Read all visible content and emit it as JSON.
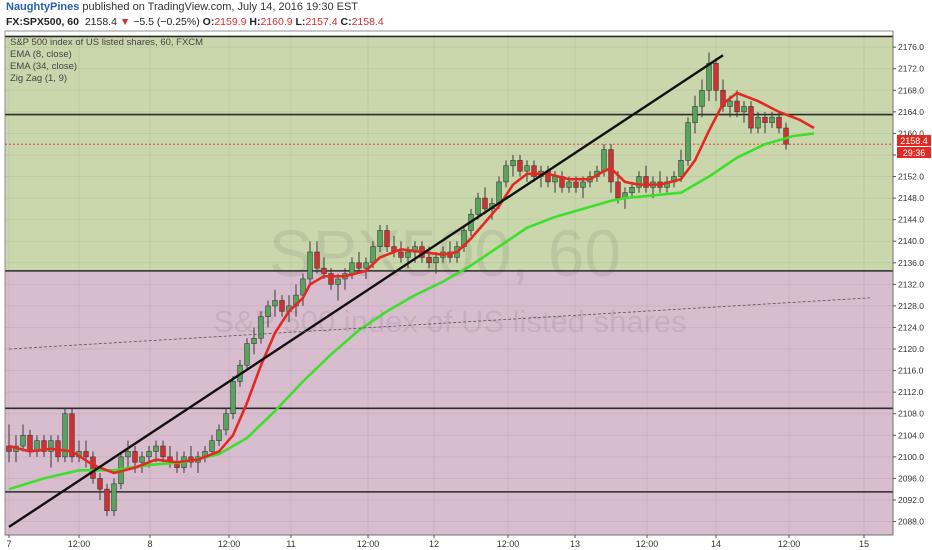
{
  "header": {
    "author": "NaughtyPines",
    "published": "published on TradingView.com, July 14, 2016 19:30 EST"
  },
  "symbol_bar": {
    "symbol": "FX:SPX500, 60",
    "last": "2158.4",
    "arrow": "▼",
    "change": "−5.5 (−0.25%)",
    "o_label": "O:",
    "o": "2159.9",
    "h_label": "H:",
    "h": "2160.9",
    "l_label": "L:",
    "l": "2157.4",
    "c_label": "C:",
    "c": "2158.4"
  },
  "legend": {
    "title": "S&P 500 index of US listed shares, 60, FXCM",
    "ema_fast": "EMA (8, close)",
    "ema_slow": "EMA (34, close)",
    "zigzag": "Zig Zag (1, 9)"
  },
  "watermark": {
    "symbol": "SPX500, 60",
    "description": "S&P 500 index of US listed shares"
  },
  "price_labels": {
    "last": "2158.4",
    "countdown": "29:36"
  },
  "colors": {
    "up_candle": "#55a65a",
    "down_candle": "#d32f2f",
    "ema_fast": "#e32a22",
    "ema_slow": "#3ce02c",
    "upper_zone": "rgba(128,160,60,0.42)",
    "lower_zone": "rgba(152,82,128,0.38)"
  },
  "chart_data": {
    "type": "candlestick",
    "ylim": [
      2085.5,
      2179
    ],
    "y_ticks": [
      2088.0,
      2092.0,
      2096.0,
      2100.0,
      2104.0,
      2108.0,
      2112.0,
      2116.0,
      2120.0,
      2124.0,
      2128.0,
      2132.0,
      2136.0,
      2140.0,
      2144.0,
      2148.0,
      2152.0,
      2156.0,
      2160.0,
      2164.0,
      2168.0,
      2172.0,
      2176.0
    ],
    "x_ticks": [
      "7",
      "12:00",
      "8",
      "12:00",
      "11",
      "12:00",
      "12",
      "12:00",
      "13",
      "12:00",
      "14",
      "12:00",
      "15"
    ],
    "horizontal_levels": [
      2178.0,
      2163.5,
      2134.5,
      2109.0,
      2093.5
    ],
    "candles": [
      [
        2102,
        2106,
        2099,
        2101
      ],
      [
        2101,
        2104,
        2099,
        2102
      ],
      [
        2102,
        2106,
        2101,
        2104
      ],
      [
        2104,
        2105,
        2100,
        2101
      ],
      [
        2101,
        2104,
        2100,
        2103
      ],
      [
        2103,
        2104,
        2100,
        2101
      ],
      [
        2101,
        2104,
        2098,
        2103
      ],
      [
        2103,
        2104,
        2099,
        2100
      ],
      [
        2100,
        2109,
        2099,
        2108
      ],
      [
        2108,
        2109,
        2099,
        2100
      ],
      [
        2100,
        2103,
        2099,
        2101
      ],
      [
        2101,
        2103,
        2098,
        2100
      ],
      [
        2100,
        2101,
        2095,
        2096
      ],
      [
        2096,
        2097,
        2092,
        2094
      ],
      [
        2094,
        2095,
        2089,
        2090
      ],
      [
        2090,
        2096,
        2089,
        2095
      ],
      [
        2095,
        2101,
        2094,
        2100
      ],
      [
        2100,
        2103,
        2098,
        2101
      ],
      [
        2101,
        2102,
        2097,
        2099
      ],
      [
        2099,
        2101,
        2097,
        2100
      ],
      [
        2100,
        2102,
        2098,
        2101
      ],
      [
        2101,
        2103,
        2099,
        2102
      ],
      [
        2102,
        2103,
        2099,
        2100
      ],
      [
        2100,
        2102,
        2098,
        2099
      ],
      [
        2099,
        2101,
        2097,
        2098
      ],
      [
        2098,
        2101,
        2097,
        2100
      ],
      [
        2100,
        2102,
        2098,
        2099
      ],
      [
        2099,
        2101,
        2097,
        2100
      ],
      [
        2100,
        2102,
        2099,
        2101
      ],
      [
        2101,
        2104,
        2100,
        2103
      ],
      [
        2103,
        2106,
        2102,
        2105
      ],
      [
        2105,
        2109,
        2104,
        2108
      ],
      [
        2108,
        2115,
        2107,
        2114
      ],
      [
        2114,
        2118,
        2113,
        2117
      ],
      [
        2117,
        2122,
        2116,
        2121
      ],
      [
        2121,
        2124,
        2119,
        2122
      ],
      [
        2122,
        2127,
        2121,
        2126
      ],
      [
        2126,
        2129,
        2124,
        2128
      ],
      [
        2128,
        2131,
        2126,
        2129
      ],
      [
        2129,
        2130,
        2126,
        2127
      ],
      [
        2127,
        2130,
        2125,
        2128
      ],
      [
        2128,
        2132,
        2126,
        2130
      ],
      [
        2130,
        2134,
        2128,
        2133
      ],
      [
        2133,
        2140,
        2132,
        2138
      ],
      [
        2138,
        2140,
        2134,
        2135
      ],
      [
        2135,
        2137,
        2133,
        2134
      ],
      [
        2134,
        2135,
        2131,
        2132
      ],
      [
        2132,
        2134,
        2129,
        2133
      ],
      [
        2133,
        2135,
        2131,
        2134
      ],
      [
        2134,
        2137,
        2133,
        2136
      ],
      [
        2136,
        2138,
        2134,
        2135
      ],
      [
        2135,
        2137,
        2133,
        2136
      ],
      [
        2136,
        2140,
        2135,
        2139
      ],
      [
        2139,
        2143,
        2138,
        2142
      ],
      [
        2142,
        2143,
        2138,
        2139
      ],
      [
        2139,
        2141,
        2137,
        2138
      ],
      [
        2138,
        2140,
        2136,
        2137
      ],
      [
        2137,
        2139,
        2135,
        2138
      ],
      [
        2138,
        2140,
        2136,
        2139
      ],
      [
        2139,
        2140,
        2136,
        2137
      ],
      [
        2137,
        2139,
        2135,
        2136
      ],
      [
        2136,
        2138,
        2134,
        2137
      ],
      [
        2137,
        2139,
        2136,
        2138
      ],
      [
        2138,
        2140,
        2136,
        2137
      ],
      [
        2137,
        2140,
        2136,
        2139
      ],
      [
        2139,
        2143,
        2138,
        2142
      ],
      [
        2142,
        2146,
        2141,
        2145
      ],
      [
        2145,
        2149,
        2144,
        2148
      ],
      [
        2148,
        2150,
        2145,
        2146
      ],
      [
        2146,
        2148,
        2144,
        2147
      ],
      [
        2147,
        2152,
        2146,
        2151
      ],
      [
        2151,
        2155,
        2150,
        2154
      ],
      [
        2154,
        2156,
        2152,
        2155
      ],
      [
        2155,
        2156,
        2152,
        2153
      ],
      [
        2153,
        2155,
        2151,
        2154
      ],
      [
        2154,
        2155,
        2151,
        2152
      ],
      [
        2152,
        2154,
        2150,
        2153
      ],
      [
        2153,
        2154,
        2150,
        2151
      ],
      [
        2151,
        2153,
        2149,
        2152
      ],
      [
        2152,
        2153,
        2149,
        2150
      ],
      [
        2150,
        2152,
        2149,
        2151
      ],
      [
        2151,
        2152,
        2149,
        2150
      ],
      [
        2150,
        2152,
        2148,
        2151
      ],
      [
        2151,
        2153,
        2150,
        2152
      ],
      [
        2152,
        2154,
        2151,
        2153
      ],
      [
        2153,
        2158,
        2152,
        2157
      ],
      [
        2157,
        2158,
        2149,
        2151
      ],
      [
        2151,
        2153,
        2147,
        2148
      ],
      [
        2148,
        2150,
        2146,
        2149
      ],
      [
        2149,
        2151,
        2148,
        2150
      ],
      [
        2150,
        2153,
        2149,
        2152
      ],
      [
        2152,
        2154,
        2149,
        2150
      ],
      [
        2150,
        2152,
        2148,
        2151
      ],
      [
        2151,
        2153,
        2149,
        2150
      ],
      [
        2150,
        2152,
        2149,
        2151
      ],
      [
        2151,
        2153,
        2150,
        2152
      ],
      [
        2152,
        2157,
        2151,
        2155
      ],
      [
        2155,
        2163,
        2154,
        2162
      ],
      [
        2162,
        2167,
        2160,
        2165
      ],
      [
        2165,
        2170,
        2163,
        2168
      ],
      [
        2168,
        2175,
        2166,
        2173
      ],
      [
        2173,
        2174,
        2166,
        2168
      ],
      [
        2168,
        2170,
        2164,
        2165
      ],
      [
        2165,
        2167,
        2163,
        2166
      ],
      [
        2166,
        2168,
        2163,
        2164
      ],
      [
        2164,
        2166,
        2162,
        2165
      ],
      [
        2165,
        2166,
        2160,
        2161
      ],
      [
        2161,
        2164,
        2160,
        2163
      ],
      [
        2163,
        2164,
        2160,
        2162
      ],
      [
        2162,
        2164,
        2161,
        2163
      ],
      [
        2163,
        2164,
        2160,
        2161
      ],
      [
        2161,
        2162,
        2157,
        2158
      ]
    ],
    "ema8": [
      [
        0,
        2102
      ],
      [
        3,
        2101
      ],
      [
        6,
        2101.5
      ],
      [
        9,
        2101
      ],
      [
        12,
        2098.5
      ],
      [
        15,
        2097
      ],
      [
        18,
        2098
      ],
      [
        21,
        2099.5
      ],
      [
        24,
        2099
      ],
      [
        27,
        2099.5
      ],
      [
        30,
        2101
      ],
      [
        32,
        2104
      ],
      [
        34,
        2110
      ],
      [
        36,
        2117
      ],
      [
        38,
        2123
      ],
      [
        40,
        2127
      ],
      [
        42,
        2129.5
      ],
      [
        43,
        2132
      ],
      [
        45,
        2133.5
      ],
      [
        48,
        2133.5
      ],
      [
        51,
        2134.5
      ],
      [
        53,
        2137
      ],
      [
        56,
        2138.5
      ],
      [
        59,
        2138
      ],
      [
        62,
        2137.5
      ],
      [
        64,
        2138
      ],
      [
        66,
        2140.5
      ],
      [
        68,
        2143.5
      ],
      [
        70,
        2146.5
      ],
      [
        72,
        2150.5
      ],
      [
        74,
        2152.5
      ],
      [
        77,
        2152.5
      ],
      [
        80,
        2151.5
      ],
      [
        83,
        2151.5
      ],
      [
        85,
        2153
      ],
      [
        86,
        2153.5
      ],
      [
        88,
        2151
      ],
      [
        90,
        2150.5
      ],
      [
        93,
        2150.5
      ],
      [
        96,
        2151.5
      ],
      [
        98,
        2155
      ],
      [
        100,
        2160.5
      ],
      [
        102,
        2165.5
      ],
      [
        104,
        2167.5
      ],
      [
        107,
        2166
      ],
      [
        110,
        2164
      ],
      [
        113,
        2162.5
      ],
      [
        115,
        2161
      ]
    ],
    "ema34": [
      [
        0,
        2094
      ],
      [
        5,
        2096
      ],
      [
        10,
        2097.5
      ],
      [
        15,
        2097.5
      ],
      [
        20,
        2098.5
      ],
      [
        25,
        2099
      ],
      [
        30,
        2100.5
      ],
      [
        34,
        2103.5
      ],
      [
        38,
        2108.5
      ],
      [
        42,
        2114
      ],
      [
        46,
        2119
      ],
      [
        50,
        2123.5
      ],
      [
        54,
        2127
      ],
      [
        58,
        2130
      ],
      [
        62,
        2132.5
      ],
      [
        66,
        2135.5
      ],
      [
        70,
        2139
      ],
      [
        74,
        2142.5
      ],
      [
        78,
        2144.5
      ],
      [
        82,
        2146
      ],
      [
        86,
        2147.5
      ],
      [
        88,
        2148
      ],
      [
        92,
        2148.5
      ],
      [
        96,
        2149
      ],
      [
        100,
        2152
      ],
      [
        104,
        2155.5
      ],
      [
        108,
        2158
      ],
      [
        112,
        2159.5
      ],
      [
        115,
        2160
      ]
    ],
    "trendlines": [
      {
        "from": [
          0,
          2087
        ],
        "to": [
          102,
          2174.5
        ],
        "style": "solid"
      },
      {
        "from": [
          0,
          2120
        ],
        "to": [
          123,
          2129.5
        ],
        "style": "dashed"
      }
    ]
  }
}
